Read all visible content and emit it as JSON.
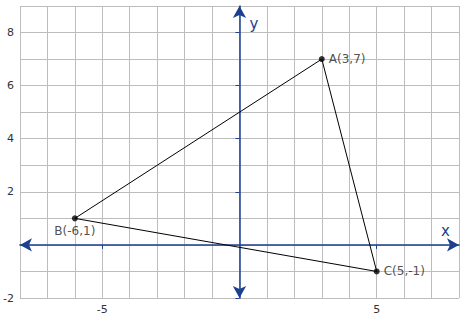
{
  "chart_data": {
    "type": "line",
    "xlabel": "x",
    "ylabel": "y",
    "x": [
      3,
      -6,
      5
    ],
    "values": [
      7,
      1,
      -1
    ],
    "value_labels": [
      "A(3,7)",
      "B(-6,1)",
      "C(5,-1)"
    ],
    "xlim": [
      -8,
      8
    ],
    "ylim": [
      -2,
      9
    ],
    "xticks": [
      -5,
      5
    ],
    "yticks": [
      -2,
      2,
      4,
      6,
      8
    ],
    "grid": true,
    "marker": "circle",
    "color": "#000000"
  }
}
